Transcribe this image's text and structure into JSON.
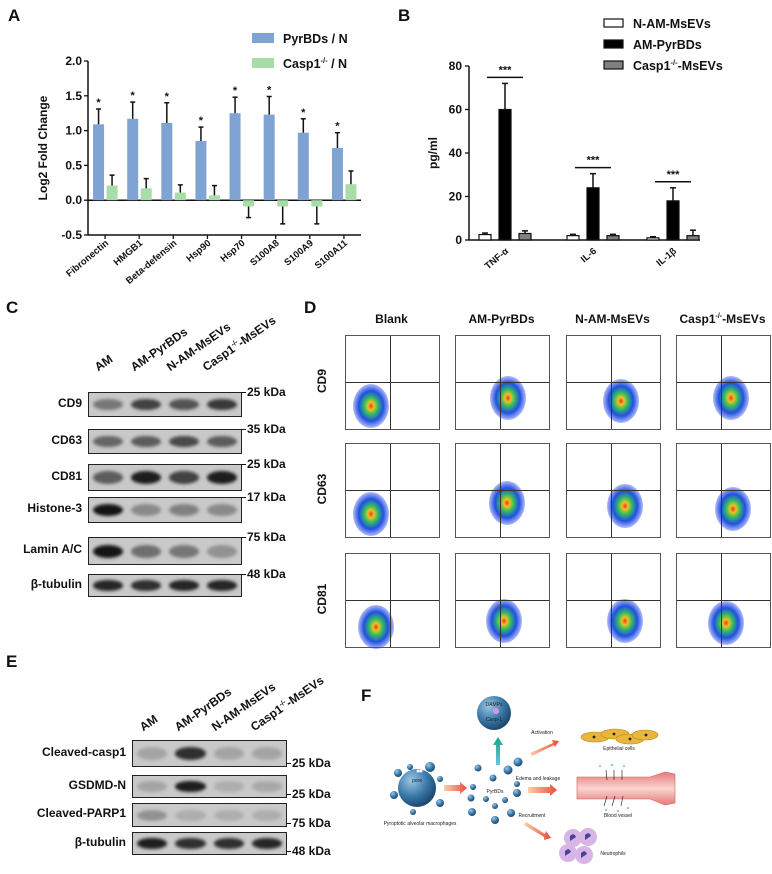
{
  "panels": {
    "a": "A",
    "b": "B",
    "c": "C",
    "d": "D",
    "e": "E",
    "f": "F"
  },
  "chart_data": [
    {
      "type": "bar",
      "ylabel": "Log2 Fold Change",
      "ylim": [
        -0.5,
        2.0
      ],
      "yticks": [
        "2.0",
        "1.5",
        "1.0",
        "0.5",
        "0.0",
        "-0.5"
      ],
      "categories": [
        "Fibronectin",
        "HMGB1",
        "Beta-defensin",
        "Hsp90",
        "Hsp70",
        "S100A8",
        "S100A9",
        "S100A11"
      ],
      "legend_position": "top-right",
      "series": [
        {
          "name": "PyrBDs / N",
          "color": "#7fa3d3",
          "values": [
            1.09,
            1.17,
            1.11,
            0.85,
            1.25,
            1.23,
            0.97,
            0.75
          ],
          "error": [
            0.22,
            0.24,
            0.29,
            0.2,
            0.23,
            0.26,
            0.2,
            0.22
          ],
          "significance": [
            "*",
            "*",
            "*",
            "*",
            "*",
            "*",
            "*",
            "*"
          ]
        },
        {
          "name": "Casp1 -/- / N",
          "name_base": "Casp1",
          "name_sup": "-/-",
          "name_tail": " / N",
          "color": "#a8dca8",
          "values": [
            0.21,
            0.17,
            0.11,
            0.07,
            -0.09,
            -0.09,
            -0.09,
            0.23
          ],
          "error": [
            0.15,
            0.14,
            0.11,
            0.14,
            0.16,
            0.25,
            0.25,
            0.19
          ]
        }
      ]
    },
    {
      "type": "bar",
      "ylabel": "pg/ml",
      "ylim": [
        0,
        80
      ],
      "yticks": [
        "80",
        "60",
        "40",
        "20",
        "0"
      ],
      "categories": [
        "TNF-α",
        "IL-6",
        "IL-1β"
      ],
      "legend_position": "top-right",
      "significance": [
        "***",
        "***",
        "***"
      ],
      "series": [
        {
          "name": "N-AM-MsEVs",
          "color": "#ffffff",
          "values": [
            2.5,
            2,
            1
          ],
          "error": [
            0.7,
            0.6,
            0.5
          ]
        },
        {
          "name": "AM-PyrBDs",
          "color": "#000000",
          "values": [
            60,
            24,
            18
          ],
          "error": [
            12,
            6.5,
            6
          ]
        },
        {
          "name": "Casp1-/--MsEVs",
          "name_base": "Casp1",
          "name_sup": "-/-",
          "name_tail": "-MsEVs",
          "color": "#808080",
          "values": [
            3,
            2,
            2
          ],
          "error": [
            1.2,
            0.6,
            2.5
          ]
        }
      ]
    }
  ],
  "western_c": {
    "lanes": [
      "AM",
      "AM-PyrBDs",
      "N-AM-MsEVs",
      "Casp1-/--MsEVs"
    ],
    "last_lane": {
      "base": "Casp1",
      "sup": "-/-",
      "tail": "-MsEVs"
    },
    "rows": [
      {
        "label": "CD9",
        "kda": "25 kDa",
        "intensity": [
          0.45,
          0.75,
          0.65,
          0.8
        ]
      },
      {
        "label": "CD63",
        "kda": "35 kDa",
        "intensity": [
          0.55,
          0.6,
          0.7,
          0.6
        ]
      },
      {
        "label": "CD81",
        "kda": "25 kDa",
        "intensity": [
          0.6,
          0.95,
          0.75,
          0.95
        ]
      },
      {
        "label": "Histone-3",
        "kda": "17 kDa",
        "intensity": [
          1.0,
          0.35,
          0.4,
          0.35
        ]
      },
      {
        "label": "Lamin A/C",
        "kda": "75 kDa",
        "intensity": [
          1.0,
          0.5,
          0.45,
          0.3
        ]
      },
      {
        "label": "β-tubulin",
        "kda": "48 kDa",
        "intensity": [
          0.9,
          0.85,
          0.9,
          0.9
        ]
      }
    ]
  },
  "flow_d": {
    "columns": [
      "Blank",
      "AM-PyrBDs",
      "N-AM-MsEVs",
      "Casp1-/--MsEVs"
    ],
    "last_column": {
      "base": "Casp1",
      "sup": "-/-",
      "tail": "-MsEVs"
    },
    "rows": [
      "CD9",
      "CD63",
      "CD81"
    ]
  },
  "western_e": {
    "lanes": [
      "AM",
      "AM-PyrBDs",
      "N-AM-MsEVs",
      "Casp1-/--MsEVs"
    ],
    "last_lane": {
      "base": "Casp1",
      "sup": "-/-",
      "tail": "-MsEVs"
    },
    "rows": [
      {
        "label": "Cleaved-casp1",
        "kda": "25 kDa",
        "intensity": [
          0.2,
          0.85,
          0.2,
          0.2
        ]
      },
      {
        "label": "GSDMD-N",
        "kda": "25 kDa",
        "intensity": [
          0.2,
          0.95,
          0.15,
          0.18
        ]
      },
      {
        "label": "Cleaved-PARP1",
        "kda": "75 kDa",
        "intensity": [
          0.3,
          0.15,
          0.15,
          0.15
        ]
      },
      {
        "label": "β-tubulin",
        "kda": "48 kDa",
        "intensity": [
          0.95,
          0.85,
          0.85,
          0.9
        ]
      }
    ]
  },
  "diagram_f": {
    "damps": "DAMPs",
    "casp": "Casp-1",
    "pore": "pore",
    "pyrbds": "PyrBDs",
    "macrophage": "Pyroptotic alveolar macrophages",
    "activation": "Activation",
    "epithelial": "Epithelial cells",
    "edema": "Edema and leakage",
    "vessel": "Blood vessel",
    "recruitment": "Recruitment",
    "neutrophils": "Neutrophils"
  }
}
